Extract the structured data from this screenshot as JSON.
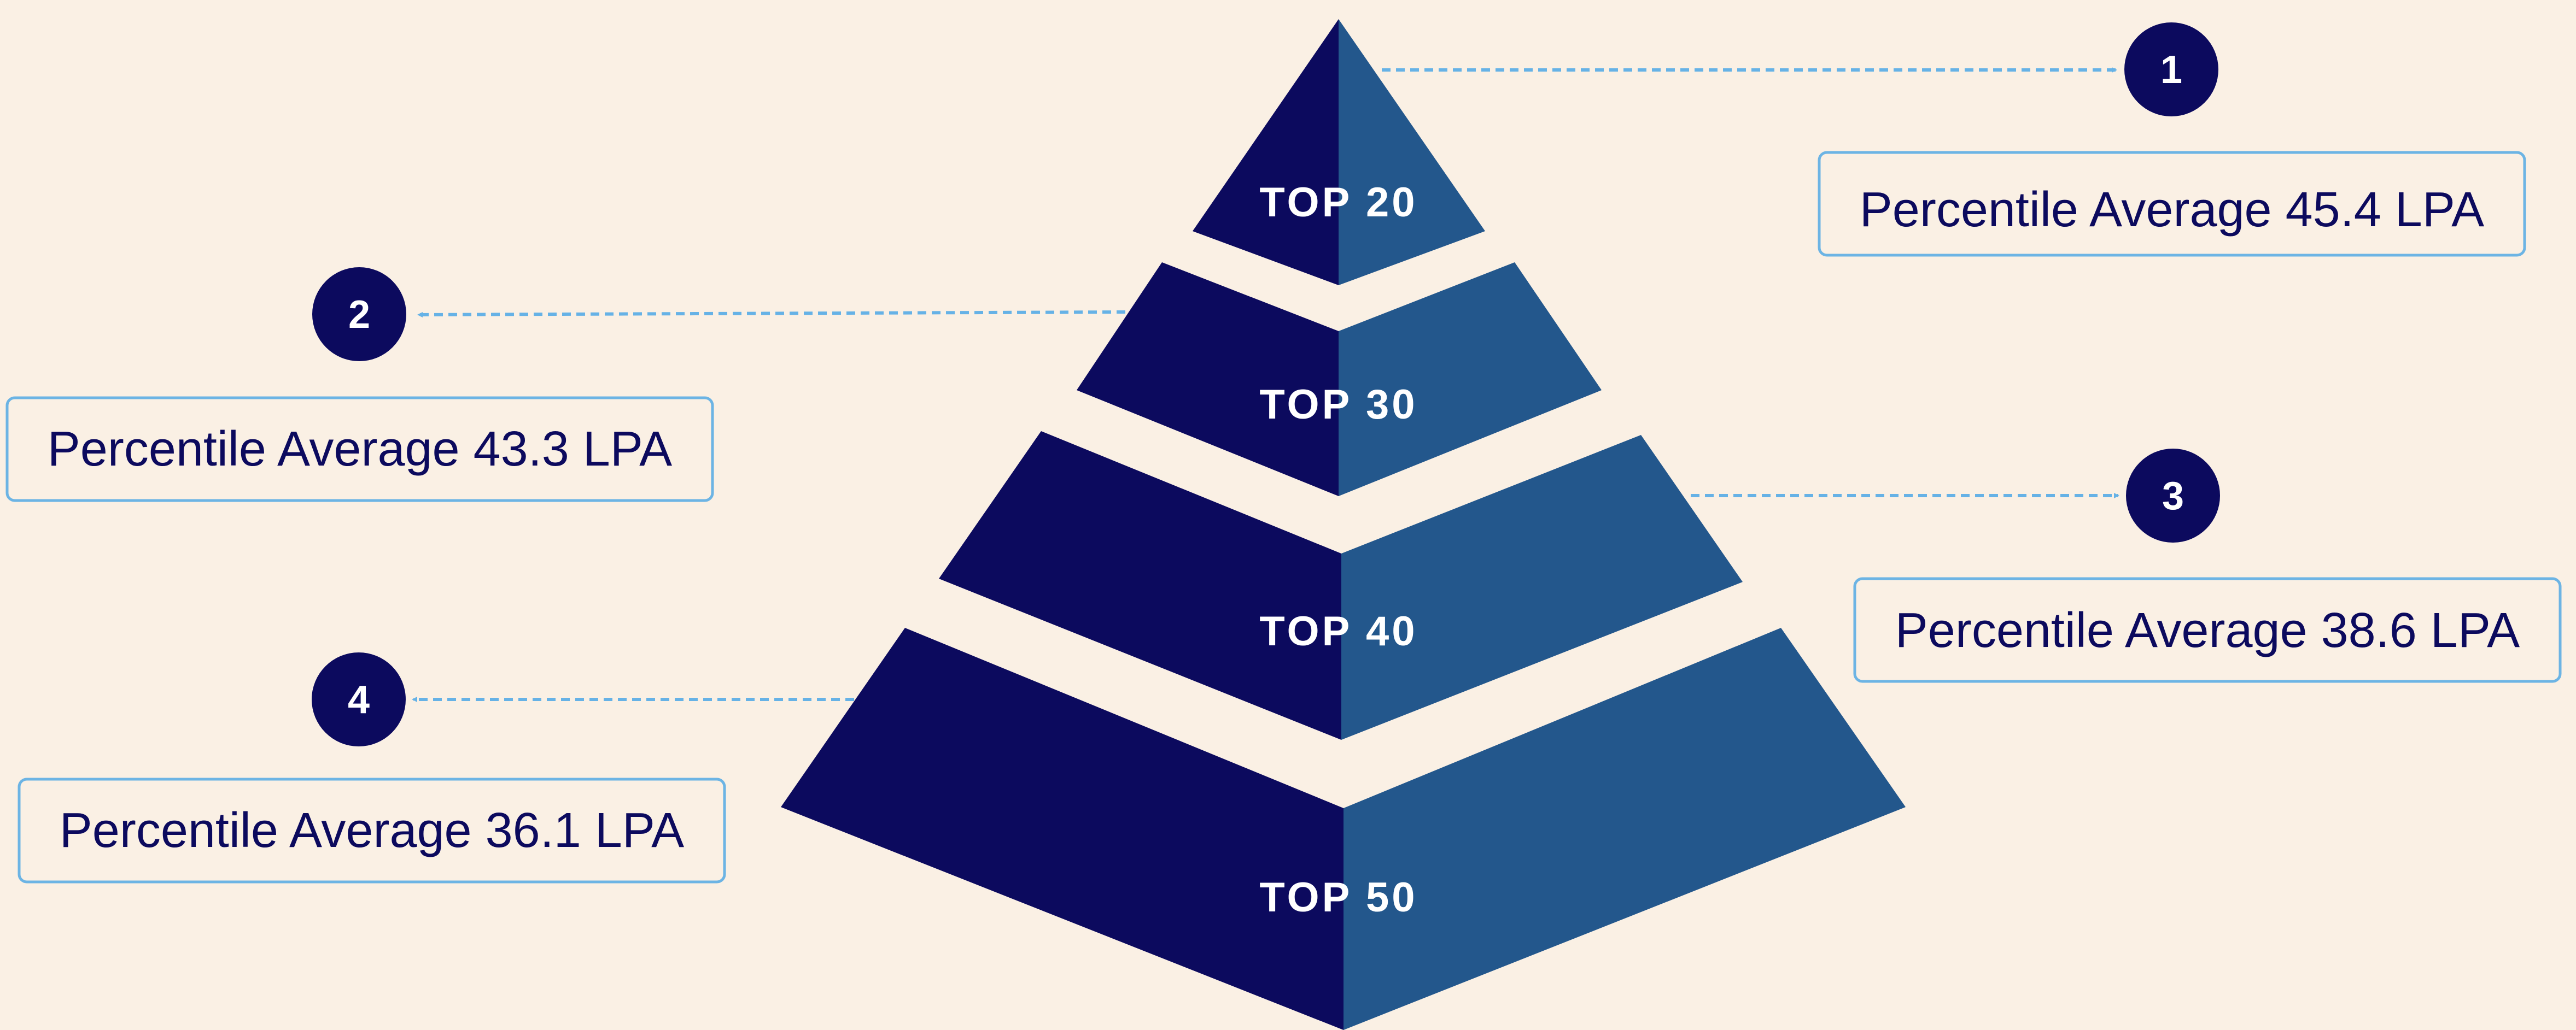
{
  "colors": {
    "background": "#FAF0E4",
    "dark_navy": "#0C0A5E",
    "steel_blue": "#23578C",
    "callout_border": "#6CB4E4",
    "arrow": "#66B2E6",
    "text": "#0C0A5E",
    "white": "#FFFFFF"
  },
  "levels": [
    {
      "label": "TOP 20",
      "marker": "1",
      "caption": "Percentile Average 45.4 LPA"
    },
    {
      "label": "TOP 30",
      "marker": "2",
      "caption": "Percentile Average 43.3 LPA"
    },
    {
      "label": "TOP 40",
      "marker": "3",
      "caption": "Percentile Average 38.6 LPA"
    },
    {
      "label": "TOP 50",
      "marker": "4",
      "caption": "Percentile Average 36.1 LPA"
    }
  ]
}
